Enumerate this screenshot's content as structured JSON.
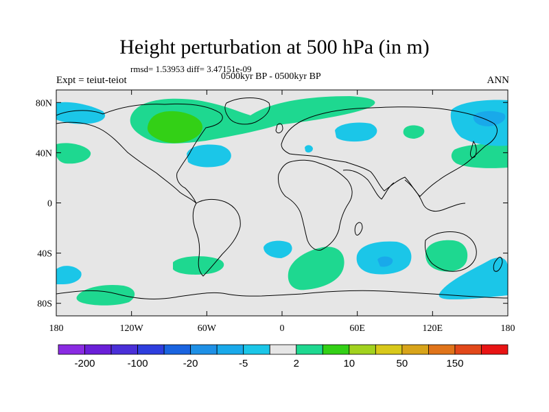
{
  "title": "Height perturbation at 500 hPa (in m)",
  "stats": "rmsd= 1.53953 diff= 3.47151e-09",
  "expt": "Expt = teiut-teiot",
  "period": "0500kyr BP - 0500kyr BP",
  "season": "ANN",
  "lat_ticks": [
    {
      "label": "80N",
      "lat": 80
    },
    {
      "label": "40N",
      "lat": 40
    },
    {
      "label": "0",
      "lat": 0
    },
    {
      "label": "40S",
      "lat": -40
    },
    {
      "label": "80S",
      "lat": -80
    }
  ],
  "lon_ticks": [
    {
      "label": "180",
      "lon": -180
    },
    {
      "label": "120W",
      "lon": -120
    },
    {
      "label": "60W",
      "lon": -60
    },
    {
      "label": "0",
      "lon": 0
    },
    {
      "label": "60E",
      "lon": 60
    },
    {
      "label": "120E",
      "lon": 120
    },
    {
      "label": "180",
      "lon": 180
    }
  ],
  "colorbar": {
    "colors": [
      "#8a2be2",
      "#6a1fd8",
      "#4a2fd8",
      "#2e3ede",
      "#1a64e0",
      "#1e90e6",
      "#19a9ea",
      "#1bc6e8",
      "#e6e6e6",
      "#1ed890",
      "#33d016",
      "#a2d21e",
      "#d8c81a",
      "#d8a41a",
      "#e0741a",
      "#e2481a",
      "#e81414"
    ],
    "labels": [
      "-200",
      "-100",
      "-20",
      "-5",
      "2",
      "10",
      "50",
      "150"
    ]
  },
  "map": {
    "ocean_color": "#e6e6e6",
    "anomaly_colors": {
      "pos_weak": "#1ed890",
      "pos_med": "#33d016",
      "pos_strong": "#a2d21e",
      "neg_weak": "#1bc6e8",
      "neg_med": "#19a9ea"
    }
  }
}
